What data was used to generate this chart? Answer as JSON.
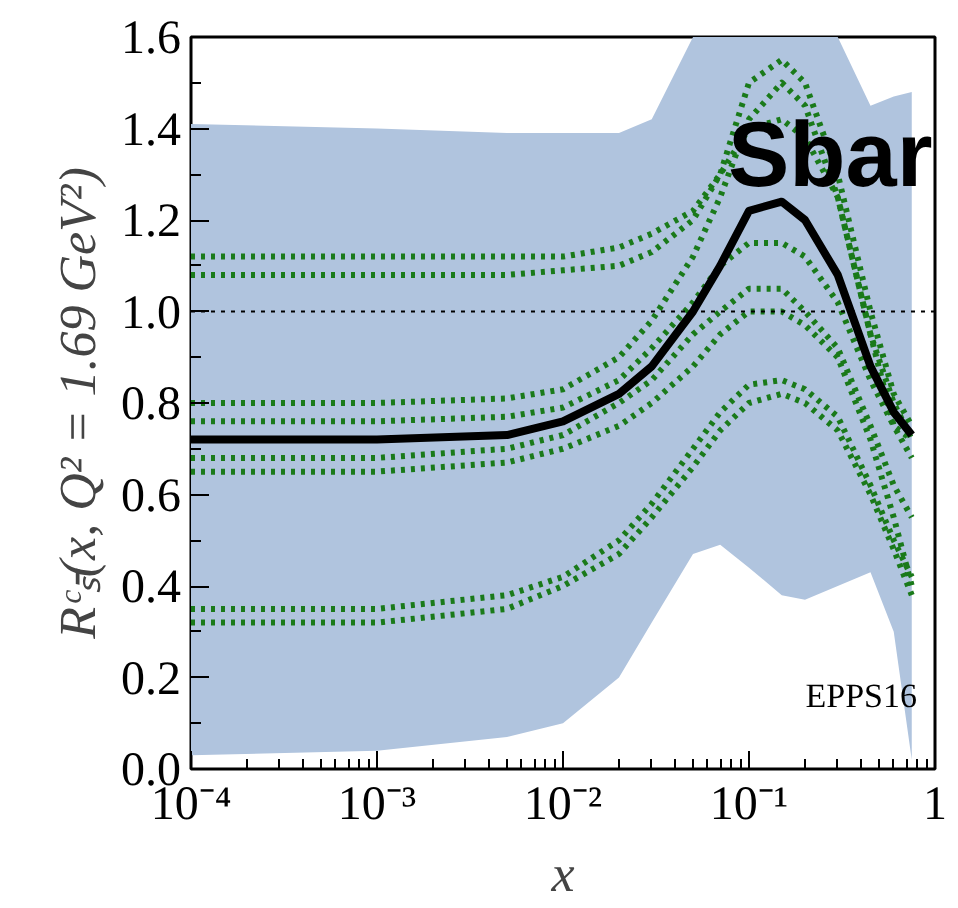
{
  "chart_data": {
    "type": "line",
    "ylabel": "Rᶜₛ̄(x, Q² = 1.69 GeV²)",
    "xlabel": "x",
    "annotations": [
      "Sbar",
      "EPPS16"
    ],
    "log": "x",
    "xlim": [
      0.0001,
      1
    ],
    "ylim": [
      0,
      1.6
    ],
    "xticks": [
      {
        "value": 0.0001,
        "label": "10⁻⁴"
      },
      {
        "value": 0.001,
        "label": "10⁻³"
      },
      {
        "value": 0.01,
        "label": "10⁻²"
      },
      {
        "value": 0.1,
        "label": "10⁻¹"
      },
      {
        "value": 1,
        "label": "1"
      }
    ],
    "yticks": [
      {
        "value": 0,
        "label": "0.0"
      },
      {
        "value": 0.2,
        "label": "0.2"
      },
      {
        "value": 0.4,
        "label": "0.4"
      },
      {
        "value": 0.6,
        "label": "0.6"
      },
      {
        "value": 0.8,
        "label": "0.8"
      },
      {
        "value": 1,
        "label": "1.0"
      },
      {
        "value": 1.2,
        "label": "1.2"
      },
      {
        "value": 1.4,
        "label": "1.4"
      },
      {
        "value": 1.6,
        "label": "1.6"
      }
    ],
    "grid": false,
    "marker": "none",
    "ref_lines": [
      {
        "axis": "y",
        "value": 1,
        "color": "#000000",
        "line_style": "dotted"
      }
    ],
    "x": [
      0.0001,
      0.001,
      0.005,
      0.01,
      0.02,
      0.03,
      0.05,
      0.07,
      0.1,
      0.15,
      0.2,
      0.3,
      0.45,
      0.6,
      0.75
    ],
    "series": [
      {
        "color": "#000000",
        "line_style": "solid",
        "values": [
          0.72,
          0.72,
          0.73,
          0.76,
          0.82,
          0.88,
          1.0,
          1.1,
          1.22,
          1.24,
          1.2,
          1.08,
          0.88,
          0.78,
          0.73
        ],
        "upper": [
          1.41,
          1.4,
          1.39,
          1.39,
          1.39,
          1.42,
          1.6,
          1.6,
          1.6,
          1.6,
          1.6,
          1.6,
          1.45,
          1.47,
          1.48
        ],
        "lower": [
          0.03,
          0.04,
          0.07,
          0.1,
          0.2,
          0.32,
          0.47,
          0.49,
          0.44,
          0.38,
          0.37,
          0.4,
          0.43,
          0.3,
          0.02
        ]
      },
      {
        "color": "#1a7a1a",
        "line_style": "dotted",
        "values": [
          1.12,
          1.12,
          1.12,
          1.12,
          1.14,
          1.17,
          1.22,
          1.3,
          1.4,
          1.42,
          1.38,
          1.25,
          0.95,
          0.8,
          0.72
        ]
      },
      {
        "color": "#1a7a1a",
        "line_style": "dotted",
        "values": [
          1.08,
          1.08,
          1.08,
          1.09,
          1.1,
          1.13,
          1.2,
          1.3,
          1.5,
          1.55,
          1.5,
          1.3,
          1.0,
          0.82,
          0.75
        ]
      },
      {
        "color": "#1a7a1a",
        "line_style": "dotted",
        "values": [
          0.8,
          0.8,
          0.81,
          0.83,
          0.9,
          0.98,
          1.12,
          1.25,
          1.42,
          1.5,
          1.45,
          1.25,
          0.95,
          0.75,
          0.68
        ]
      },
      {
        "color": "#1a7a1a",
        "line_style": "dotted",
        "values": [
          0.65,
          0.65,
          0.67,
          0.7,
          0.75,
          0.8,
          0.88,
          0.95,
          1.0,
          1.0,
          0.97,
          0.9,
          0.72,
          0.55,
          0.4
        ]
      },
      {
        "color": "#1a7a1a",
        "line_style": "dotted",
        "values": [
          0.35,
          0.35,
          0.38,
          0.42,
          0.5,
          0.58,
          0.7,
          0.78,
          0.84,
          0.85,
          0.83,
          0.77,
          0.62,
          0.5,
          0.42
        ]
      },
      {
        "color": "#1a7a1a",
        "line_style": "dotted",
        "values": [
          0.32,
          0.32,
          0.35,
          0.4,
          0.47,
          0.55,
          0.66,
          0.74,
          0.8,
          0.82,
          0.8,
          0.74,
          0.6,
          0.48,
          0.38
        ]
      },
      {
        "color": "#1a7a1a",
        "line_style": "dotted",
        "values": [
          0.76,
          0.76,
          0.77,
          0.79,
          0.85,
          0.92,
          1.02,
          1.1,
          1.15,
          1.15,
          1.12,
          1.02,
          0.85,
          0.75,
          0.72
        ]
      },
      {
        "color": "#1a7a1a",
        "line_style": "dotted",
        "values": [
          0.68,
          0.68,
          0.7,
          0.73,
          0.8,
          0.85,
          0.95,
          1.0,
          1.05,
          1.05,
          1.0,
          0.92,
          0.75,
          0.62,
          0.55
        ]
      }
    ]
  }
}
